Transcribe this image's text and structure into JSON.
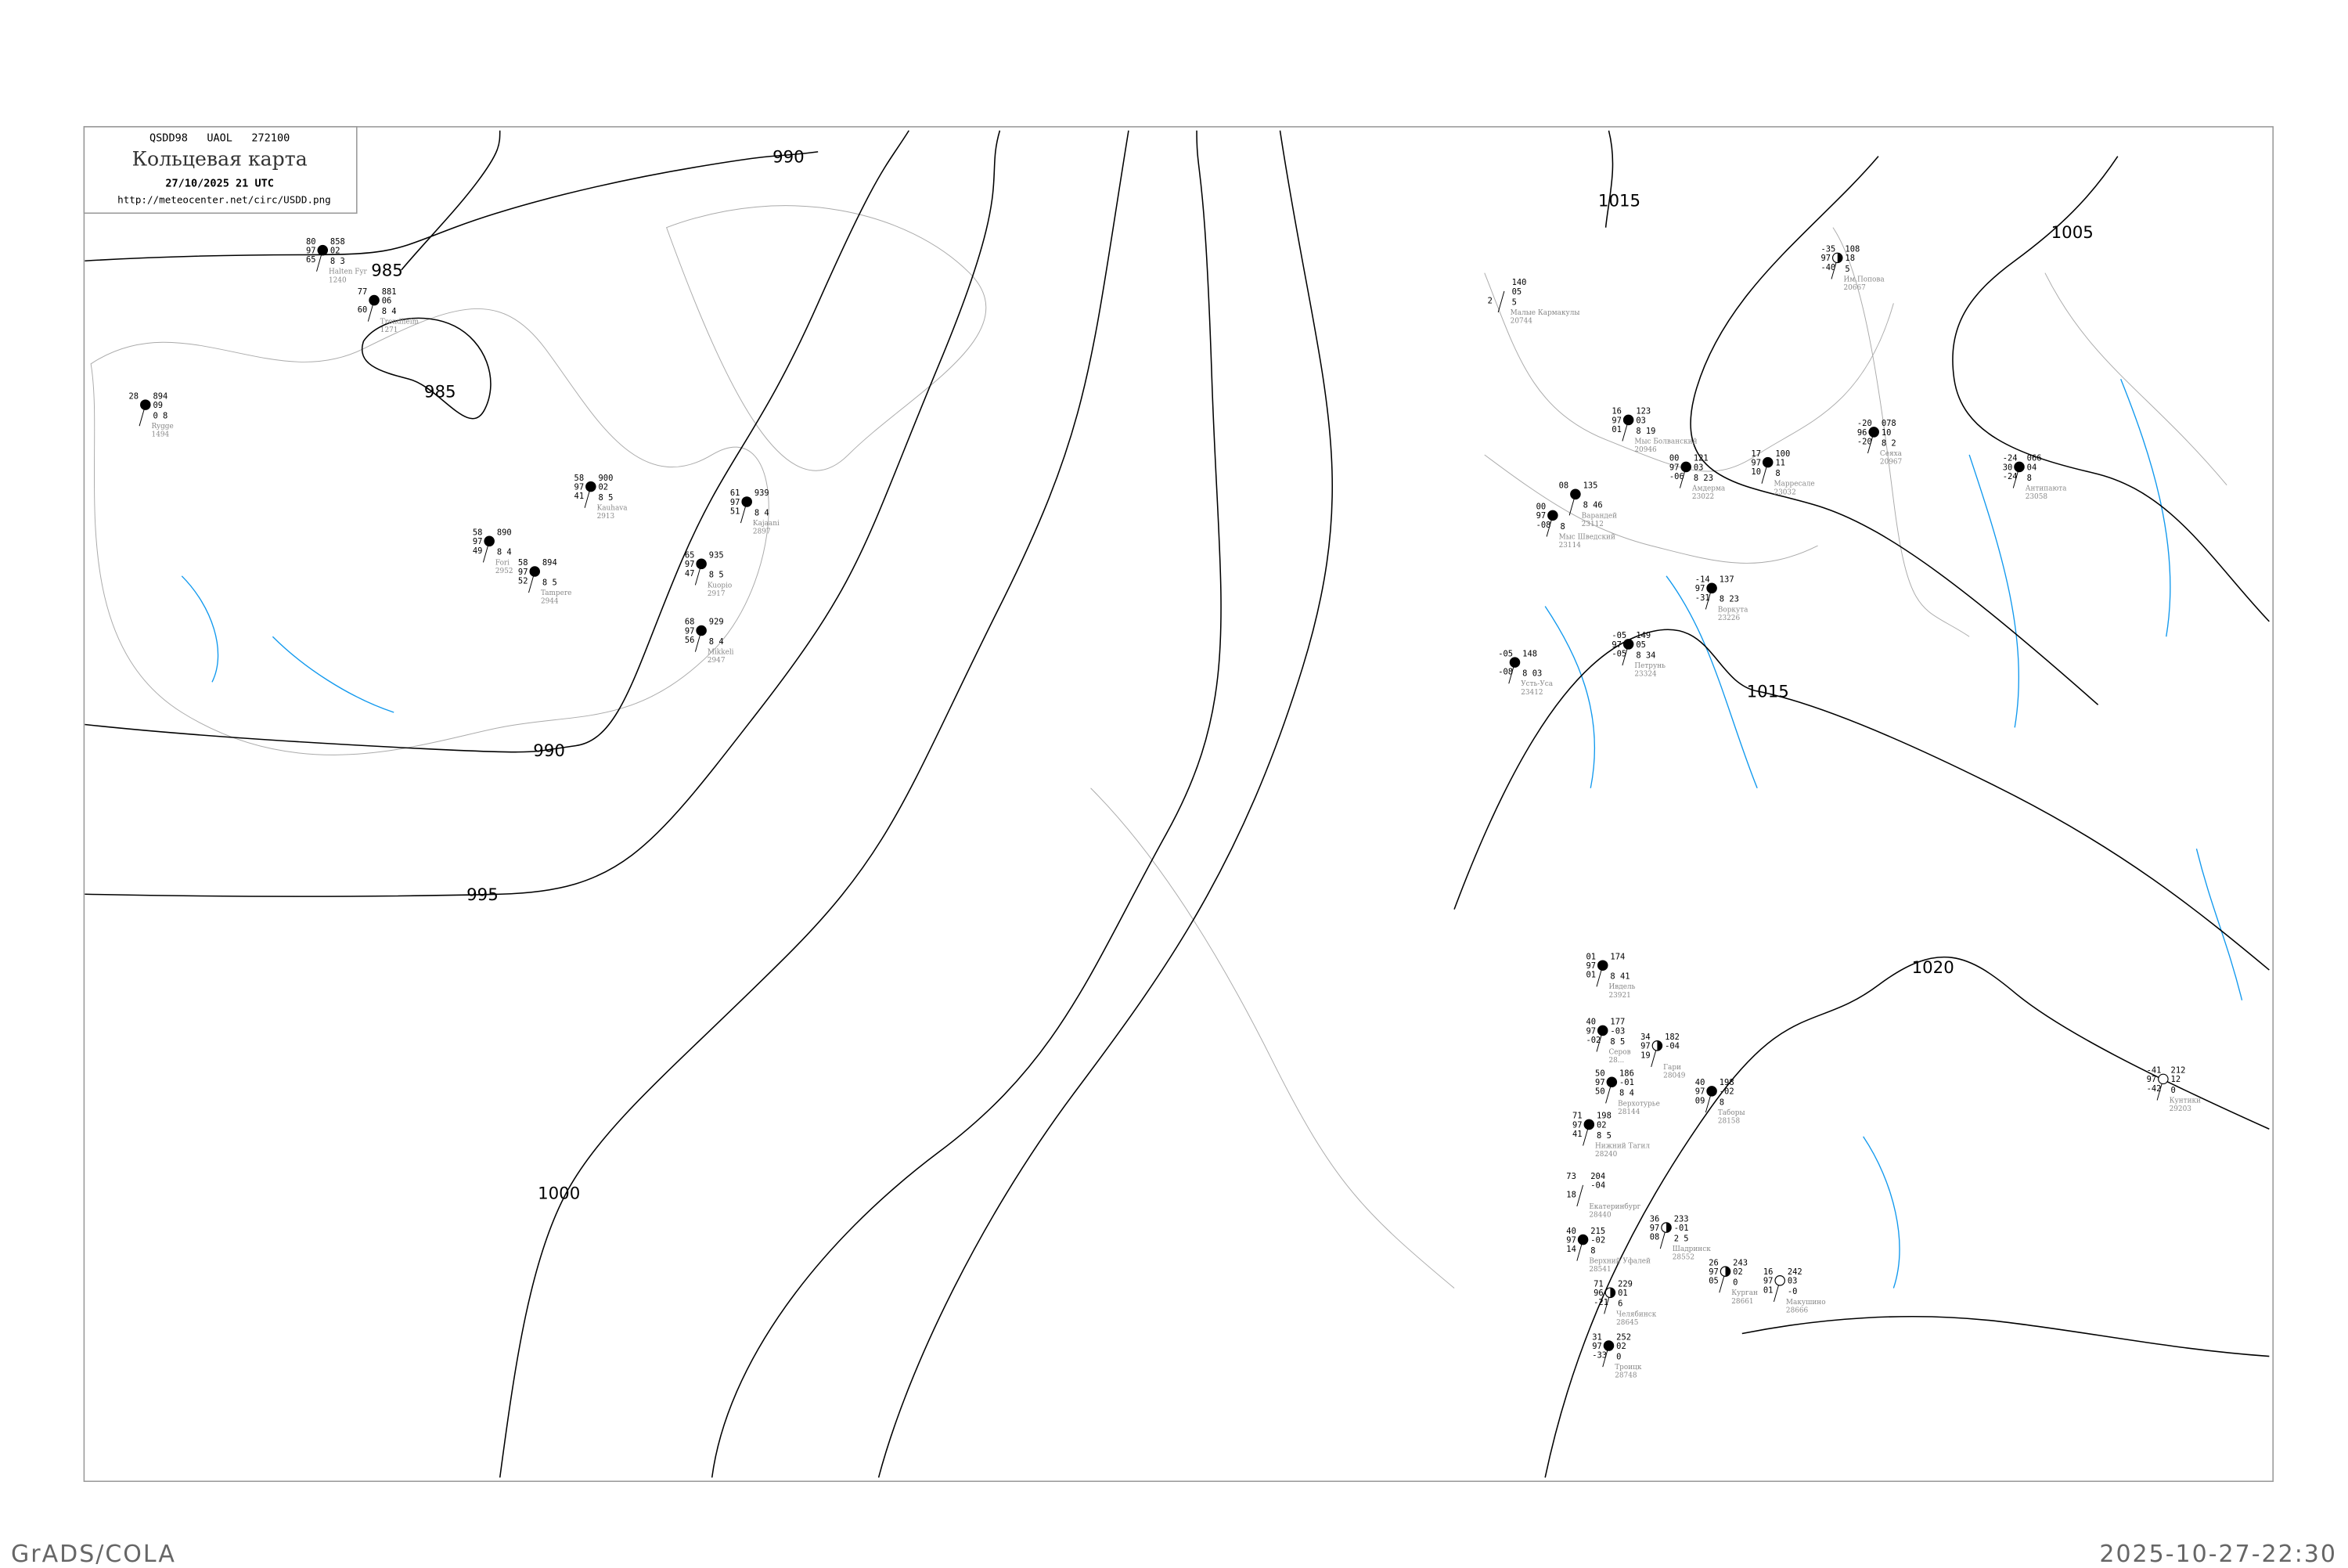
{
  "header": {
    "code": "QSDD98   UAOL   272100",
    "title": "Кольцевая карта",
    "datetime": "27/10/2025 21 UTC",
    "url": "http://meteocenter.net/circ/USDD.png"
  },
  "footer": {
    "left": "GrADS/COLA",
    "right": "2025-10-27-22:30"
  },
  "colors": {
    "isobar": "#000000",
    "coast": "#aaaaaa",
    "rivers": "#1199ee",
    "precip_marker": "#22bb33",
    "snow_marker": "#3399ee",
    "fog_marker": "#ffff99"
  },
  "isobar_labels": [
    "985",
    "985",
    "990",
    "990",
    "995",
    "1000",
    "1005",
    "1015",
    "1015",
    "1020"
  ],
  "stations": [
    {
      "id": "20667",
      "name": "Им.Попова",
      "cover": "half",
      "t": "-35",
      "p": "108",
      "a": "97",
      "tend": "18",
      "td": "-40",
      "x": "5"
    },
    {
      "id": "20744",
      "name": "Малые Кармакулы",
      "cover": "none",
      "t": "",
      "p": "140",
      "a": "",
      "tend": "05",
      "td": "2",
      "x": "5"
    },
    {
      "id": "20946",
      "name": "Мыс Болванский",
      "cover": "full",
      "t": "16",
      "p": "123",
      "a": "97",
      "tend": "03",
      "td": "01",
      "x": "8 19"
    },
    {
      "id": "23022",
      "name": "Амдерма",
      "cover": "full",
      "t": "00",
      "p": "121",
      "a": "97",
      "tend": "03",
      "td": "-06",
      "x": "8 23"
    },
    {
      "id": "23032",
      "name": "Марресале",
      "cover": "full",
      "t": "17",
      "p": "100",
      "a": "97",
      "tend": "11",
      "td": "10",
      "x": "8"
    },
    {
      "id": "20967",
      "name": "Сеяха",
      "cover": "full",
      "t": "-20",
      "p": "078",
      "a": "96",
      "tend": "10",
      "td": "-20",
      "x": "8 2"
    },
    {
      "id": "23058",
      "name": "Антипаюта",
      "cover": "full",
      "t": "-24",
      "p": "066",
      "a": "30",
      "tend": "04",
      "td": "-24",
      "x": "8"
    },
    {
      "id": "23114",
      "name": "Мыс Шведский",
      "cover": "full",
      "t": "00",
      "p": "",
      "a": "97",
      "tend": "",
      "td": "-08",
      "x": "8"
    },
    {
      "id": "23112",
      "name": "Варандей",
      "cover": "full",
      "t": "08",
      "p": "135",
      "a": "",
      "tend": "",
      "td": "",
      "x": "8 46"
    },
    {
      "id": "23226",
      "name": "Воркута",
      "cover": "full",
      "t": "-14",
      "p": "137",
      "a": "97",
      "tend": "",
      "td": "-31",
      "x": "8 23"
    },
    {
      "id": "23324",
      "name": "Петрунь",
      "cover": "full",
      "t": "-05",
      "p": "149",
      "a": "97",
      "tend": "05",
      "td": "-05",
      "x": "8 34"
    },
    {
      "id": "23412",
      "name": "Усть-Уса",
      "cover": "full",
      "t": "-05",
      "p": "148",
      "a": "",
      "tend": "",
      "td": "-08",
      "x": "8 03"
    },
    {
      "id": "23921",
      "name": "Ивдель",
      "cover": "full",
      "t": "01",
      "p": "174",
      "a": "97",
      "tend": "",
      "td": "01",
      "x": "8 41"
    },
    {
      "id": "28...",
      "name": "Серов",
      "cover": "full",
      "t": "40",
      "p": "177",
      "a": "97",
      "tend": "-03",
      "td": "-02",
      "x": "8 5"
    },
    {
      "id": "28049",
      "name": "Гари",
      "cover": "half",
      "t": "34",
      "p": "182",
      "a": "97",
      "tend": "-04",
      "td": "19",
      "x": ""
    },
    {
      "id": "28144",
      "name": "Верхотурье",
      "cover": "full",
      "t": "50",
      "p": "186",
      "a": "97",
      "tend": "-01",
      "td": "50",
      "x": "8 4"
    },
    {
      "id": "28158",
      "name": "Таборы",
      "cover": "full",
      "t": "40",
      "p": "198",
      "a": "97",
      "tend": "-02",
      "td": "09",
      "x": "8"
    },
    {
      "id": "28240",
      "name": "Нижний Тагил",
      "cover": "full",
      "t": "71",
      "p": "198",
      "a": "97",
      "tend": "02",
      "td": "41",
      "x": "8 5"
    },
    {
      "id": "28440",
      "name": "Екатеринбург",
      "cover": "none",
      "t": "73",
      "p": "204",
      "a": "",
      "tend": "-04",
      "td": "18",
      "x": ""
    },
    {
      "id": "28541",
      "name": "Верхний Уфалей",
      "cover": "full",
      "t": "40",
      "p": "215",
      "a": "97",
      "tend": "-02",
      "td": "14",
      "x": "8"
    },
    {
      "id": "28552",
      "name": "Шадринск",
      "cover": "half",
      "t": "36",
      "p": "233",
      "a": "97",
      "tend": "-01",
      "td": "08",
      "x": "2 5"
    },
    {
      "id": "28661",
      "name": "Курган",
      "cover": "half",
      "t": "26",
      "p": "243",
      "a": "97",
      "tend": "02",
      "td": "05",
      "x": "0"
    },
    {
      "id": "28645",
      "name": "Челябинск",
      "cover": "half",
      "t": "71",
      "p": "229",
      "a": "96",
      "tend": "01",
      "td": "-21",
      "x": "6"
    },
    {
      "id": "28666",
      "name": "Макушино",
      "cover": "open",
      "t": "16",
      "p": "242",
      "a": "97",
      "tend": "03",
      "td": "01",
      "x": "-0"
    },
    {
      "id": "28748",
      "name": "Троицк",
      "cover": "full",
      "t": "31",
      "p": "252",
      "a": "97",
      "tend": "02",
      "td": "-33",
      "x": "0"
    },
    {
      "id": "29203",
      "name": "Кунтики",
      "cover": "open",
      "t": "-41",
      "p": "212",
      "a": "97",
      "tend": "12",
      "td": "-42",
      "x": "0"
    },
    {
      "id": "1240",
      "name": "Halten Fyr",
      "cover": "full",
      "t": "80",
      "p": "858",
      "a": "97",
      "tend": "02",
      "td": "65",
      "x": "8 3"
    },
    {
      "id": "1271",
      "name": "Trondheim",
      "cover": "full",
      "t": "77",
      "p": "881",
      "a": "",
      "tend": "06",
      "td": "60",
      "x": "8 4"
    },
    {
      "id": "2917",
      "name": "Kuopio",
      "cover": "full",
      "t": "65",
      "p": "935",
      "a": "97",
      "tend": "",
      "td": "47",
      "x": "8 5"
    },
    {
      "id": "2897",
      "name": "Kajaani",
      "cover": "full",
      "t": "61",
      "p": "939",
      "a": "97",
      "tend": "",
      "td": "51",
      "x": "8 4"
    },
    {
      "id": "2944",
      "name": "Tampere",
      "cover": "full",
      "t": "58",
      "p": "894",
      "a": "97",
      "tend": "",
      "td": "52",
      "x": "8 5"
    },
    {
      "id": "2952",
      "name": "Fori",
      "cover": "full",
      "t": "58",
      "p": "890",
      "a": "97",
      "tend": "",
      "td": "49",
      "x": "8 4"
    },
    {
      "id": "2913",
      "name": "Kauhava",
      "cover": "full",
      "t": "58",
      "p": "900",
      "a": "97",
      "tend": "02",
      "td": "41",
      "x": "8 5"
    },
    {
      "id": "2947",
      "name": "Mikkeli",
      "cover": "full",
      "t": "68",
      "p": "929",
      "a": "97",
      "tend": "",
      "td": "56",
      "x": "8 4"
    },
    {
      "id": "1494",
      "name": "Rygge",
      "cover": "full",
      "t": "28",
      "p": "894",
      "a": "",
      "tend": "09",
      "td": "",
      "x": "0 8"
    }
  ]
}
